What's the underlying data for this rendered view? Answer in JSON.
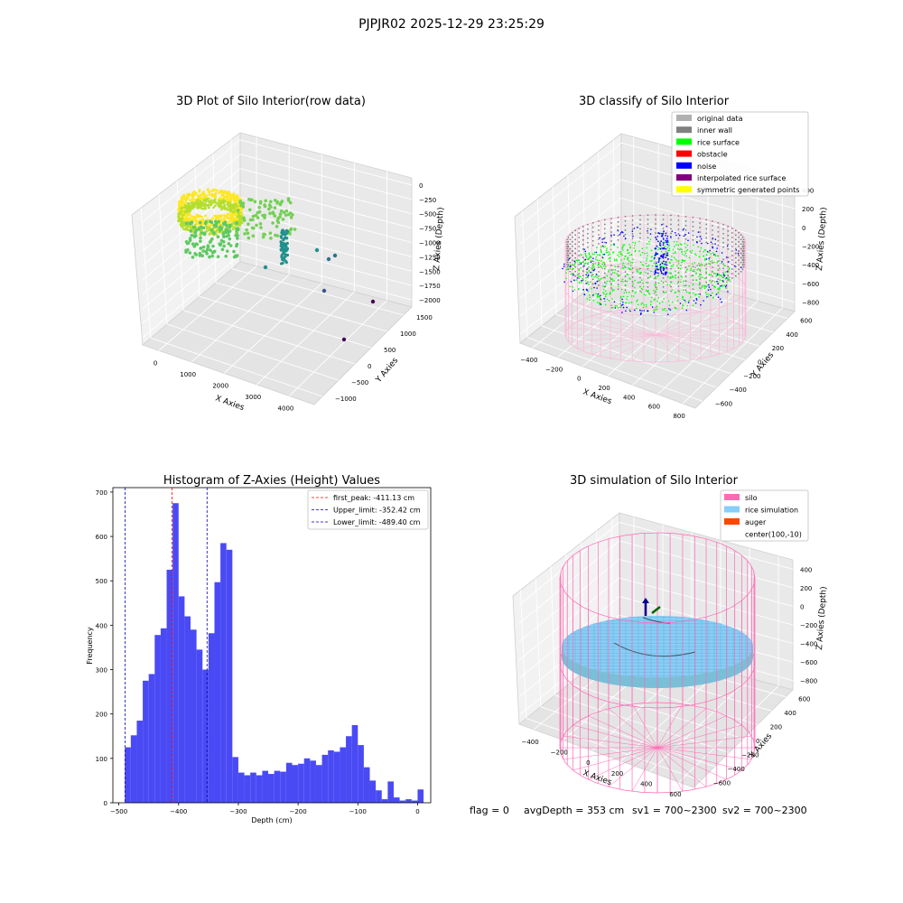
{
  "figure": {
    "suptitle": "PJPJR02 2025-12-29 23:25:29",
    "footer": {
      "flag": "flag = 0",
      "avg_depth": "avgDepth = 353 cm",
      "sv1": "sv1 = 700~2300",
      "sv2": "sv2 = 700~2300"
    }
  },
  "chart_data": [
    {
      "type": "scatter",
      "title": "3D Plot of Silo Interior(row data)",
      "xlabel": "X Axies",
      "ylabel": "Y Axies",
      "zlabel": "Z Axies (Depth)",
      "x_ticks": [
        "0",
        "1000",
        "2000",
        "3000",
        "4000"
      ],
      "y_ticks": [
        "−1000",
        "−500",
        "0",
        "500",
        "1000",
        "1500"
      ],
      "z_ticks": [
        "0",
        "−250",
        "−500",
        "−750",
        "−1000",
        "−1250",
        "−1500",
        "−1750",
        "−2000"
      ],
      "colormap": [
        "#fde725",
        "#5ec962",
        "#21918c",
        "#3b528b",
        "#440154"
      ]
    },
    {
      "type": "scatter",
      "title": "3D classify of Silo Interior",
      "xlabel": "X Axies",
      "ylabel": "Y Axies",
      "zlabel": "Z Axies (Depth)",
      "x_ticks": [
        "−400",
        "−200",
        "0",
        "200",
        "400",
        "600",
        "800"
      ],
      "y_ticks": [
        "−600",
        "−400",
        "−200",
        "0",
        "200",
        "400",
        "600"
      ],
      "z_ticks": [
        "400",
        "200",
        "0",
        "−200",
        "−400",
        "−600",
        "−800"
      ],
      "legend_position": "top-right",
      "legend": [
        {
          "label": "original data",
          "color": "#b0b0b0"
        },
        {
          "label": "inner wall",
          "color": "#808080"
        },
        {
          "label": "rice surface",
          "color": "#00ff00"
        },
        {
          "label": "obstacle",
          "color": "#ff0000"
        },
        {
          "label": "noise",
          "color": "#0000ff"
        },
        {
          "label": "interpolated rice surface",
          "color": "#800080"
        },
        {
          "label": "symmetric generated points",
          "color": "#ffff00"
        }
      ],
      "cylinder_color": "#ffb6d9"
    },
    {
      "type": "bar",
      "title": "Histogram of Z-Axies (Height) Values",
      "xlabel": "Depth (cm)",
      "ylabel": "Frequency",
      "xlim": [
        -510,
        22
      ],
      "ylim": [
        0,
        710
      ],
      "x_ticks": [
        -500,
        -400,
        -300,
        -200,
        -100,
        0
      ],
      "x_tick_labels": [
        "−500",
        "−400",
        "−300",
        "−200",
        "−100",
        "0"
      ],
      "y_ticks": [
        0,
        100,
        200,
        300,
        400,
        500,
        600,
        700
      ],
      "bar_color": "#4a4af5",
      "bin_start": -490,
      "bin_width": 10,
      "values": [
        125,
        152,
        185,
        275,
        290,
        378,
        393,
        525,
        675,
        465,
        420,
        390,
        345,
        300,
        382,
        497,
        585,
        570,
        103,
        68,
        62,
        68,
        62,
        72,
        65,
        72,
        70,
        90,
        85,
        88,
        100,
        95,
        85,
        108,
        118,
        115,
        125,
        150,
        175,
        130,
        80,
        50,
        28,
        8,
        48,
        12,
        5,
        8,
        5,
        30
      ],
      "vlines": [
        {
          "label": "first_peak: -411.13 cm",
          "x": -411.13,
          "color": "#ff0000"
        },
        {
          "label": "Upper_limit: -352.42 cm",
          "x": -352.42,
          "color": "#0000aa"
        },
        {
          "label": "Lower_limit: -489.40 cm",
          "x": -489.4,
          "color": "#0000aa"
        }
      ],
      "legend_position": "top-right"
    },
    {
      "type": "surface",
      "title": "3D simulation of Silo Interior",
      "xlabel": "X Axies",
      "ylabel": "Y Axies",
      "zlabel": "Z Axies (Depth)",
      "x_ticks": [
        "−400",
        "−200",
        "0",
        "200",
        "400",
        "600"
      ],
      "y_ticks": [
        "−600",
        "−400",
        "−200",
        "0",
        "200",
        "400",
        "600"
      ],
      "z_ticks": [
        "400",
        "200",
        "0",
        "−200",
        "−400",
        "−600",
        "−800"
      ],
      "legend_position": "top-right",
      "legend": [
        {
          "label": "silo",
          "color": "#ff69b4"
        },
        {
          "label": "rice simulation",
          "color": "#87cefa"
        },
        {
          "label": "auger",
          "color": "#ff4500"
        },
        {
          "label": "center(100,-10)",
          "color": ""
        }
      ]
    }
  ]
}
